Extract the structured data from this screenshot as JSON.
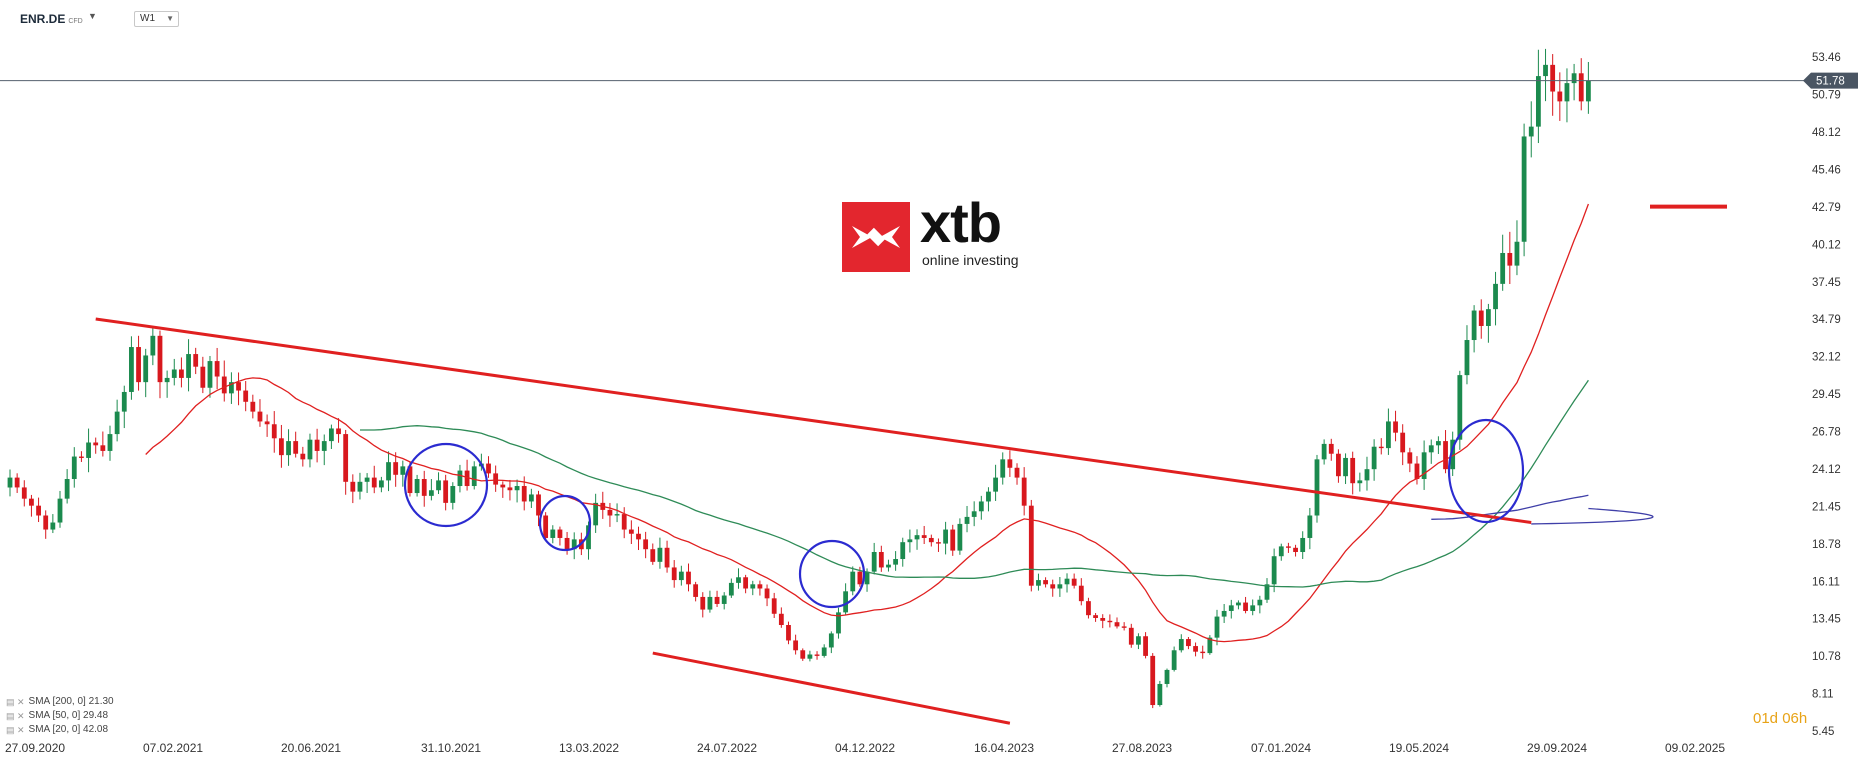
{
  "header": {
    "symbol": "ENR.DE",
    "symbol_suffix": "CFD",
    "timeframe": "W1"
  },
  "logo": {
    "name": "xtb",
    "tagline": "online investing",
    "brand_color": "#e3262e"
  },
  "countdown": "01d 06h",
  "legend": [
    {
      "label": "SMA [200, 0] 21.30",
      "color": "#3f3fa8"
    },
    {
      "label": "SMA [50, 0] 29.48",
      "color": "#2e8b57"
    },
    {
      "label": "SMA [20, 0] 42.08",
      "color": "#e02020"
    }
  ],
  "chart_data": {
    "type": "candlestick",
    "title": "",
    "ylim": [
      4.8,
      55.0
    ],
    "y_ticks": [
      5.45,
      8.11,
      10.78,
      13.45,
      16.11,
      18.78,
      21.45,
      24.12,
      26.78,
      29.45,
      32.12,
      34.79,
      37.45,
      40.12,
      42.79,
      45.46,
      48.12,
      50.79,
      53.46
    ],
    "x_tick_labels": [
      "27.09.2020",
      "07.02.2021",
      "20.06.2021",
      "31.10.2021",
      "13.03.2022",
      "24.07.2022",
      "04.12.2022",
      "16.04.2023",
      "27.08.2023",
      "07.01.2024",
      "19.05.2024",
      "29.09.2024",
      "09.02.2025"
    ],
    "last_price": 51.78,
    "colors": {
      "up": "#1b8a4e",
      "down": "#d8181e",
      "last_line": "#54606e"
    },
    "closes": [
      23.5,
      22.8,
      22.0,
      21.5,
      20.8,
      19.8,
      20.3,
      22.0,
      23.4,
      25.0,
      24.9,
      26.0,
      25.8,
      25.4,
      26.6,
      28.2,
      29.6,
      32.8,
      30.3,
      32.2,
      33.6,
      30.3,
      30.6,
      31.2,
      30.6,
      32.3,
      31.4,
      29.9,
      31.8,
      30.7,
      29.5,
      30.3,
      29.7,
      28.9,
      28.2,
      27.5,
      27.3,
      26.3,
      25.1,
      26.1,
      25.2,
      24.8,
      26.2,
      25.4,
      26.1,
      27.0,
      26.6,
      23.2,
      22.5,
      23.2,
      23.5,
      22.8,
      23.3,
      24.6,
      23.7,
      24.3,
      22.4,
      23.4,
      22.2,
      22.6,
      23.3,
      21.7,
      22.9,
      24.0,
      22.9,
      24.3,
      24.5,
      23.8,
      23.0,
      22.8,
      22.6,
      22.9,
      21.8,
      22.3,
      20.8,
      19.2,
      19.8,
      19.2,
      18.4,
      19.1,
      18.4,
      20.1,
      21.7,
      21.2,
      20.8,
      20.9,
      19.8,
      19.5,
      19.1,
      18.4,
      17.5,
      18.5,
      17.1,
      16.2,
      16.8,
      15.9,
      15.0,
      14.1,
      15.0,
      14.5,
      15.1,
      16.0,
      16.4,
      15.6,
      15.9,
      15.6,
      14.9,
      13.8,
      13.0,
      11.9,
      11.2,
      10.6,
      10.9,
      10.8,
      11.4,
      12.4,
      13.9,
      15.4,
      16.8,
      15.9,
      16.8,
      18.2,
      17.1,
      17.3,
      17.7,
      18.9,
      19.1,
      19.4,
      19.2,
      18.9,
      18.8,
      19.8,
      18.3,
      20.2,
      20.7,
      21.1,
      21.8,
      22.5,
      23.5,
      24.8,
      24.2,
      23.5,
      21.5,
      15.8,
      16.2,
      15.9,
      15.6,
      15.9,
      16.3,
      15.8,
      14.7,
      13.7,
      13.5,
      13.3,
      13.2,
      12.9,
      12.8,
      11.6,
      12.2,
      10.8,
      7.3,
      8.8,
      9.8,
      11.2,
      12.0,
      11.5,
      11.1,
      11.0,
      12.1,
      13.6,
      14.0,
      14.4,
      14.6,
      14.0,
      14.4,
      14.8,
      15.9,
      17.9,
      18.6,
      18.5,
      18.2,
      19.2,
      20.8,
      24.8,
      25.9,
      25.2,
      23.6,
      24.9,
      23.1,
      23.3,
      24.1,
      25.7,
      25.6,
      27.5,
      26.7,
      25.3,
      24.5,
      23.4,
      25.3,
      25.8,
      26.1,
      24.1,
      26.2,
      30.8,
      33.3,
      35.4,
      34.3,
      35.5,
      37.3,
      39.5,
      38.6,
      40.3,
      47.8,
      48.5,
      52.1,
      52.9,
      51.0,
      50.3,
      51.6,
      52.3,
      50.3,
      51.78
    ]
  }
}
